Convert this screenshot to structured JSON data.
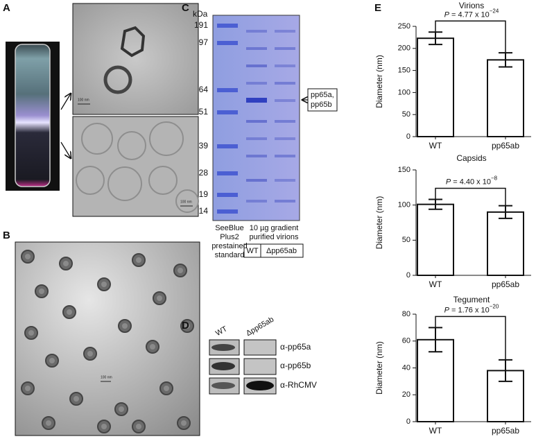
{
  "panels": {
    "A": {
      "label": "A",
      "scale_bar_top": "100 nm",
      "scale_bar_bottom": "100 nm"
    },
    "B": {
      "label": "B",
      "scale_bar": "100 nm"
    },
    "C": {
      "label": "C",
      "unit": "kDa",
      "markers": [
        191,
        97,
        64,
        51,
        39,
        28,
        19,
        14
      ],
      "arrow_label": [
        "pp65a,",
        "pp65b"
      ],
      "standard_label": [
        "SeeBlue",
        "Plus2",
        "prestained",
        "standard"
      ],
      "sample_label": [
        "10 µg gradient",
        "purified virions"
      ],
      "lanes": [
        "WT",
        "Δpp65ab"
      ]
    },
    "D": {
      "label": "D",
      "lanes": [
        "WT",
        "Δpp65ab"
      ],
      "antibodies": [
        "α-pp65a",
        "α-pp65b",
        "α-RhCMV"
      ]
    },
    "E": {
      "label": "E"
    }
  },
  "chart_data": [
    {
      "type": "bar",
      "title": "Virions",
      "y_label": "Diameter (nm)",
      "categories": [
        "WT",
        "pp65ab"
      ],
      "values": [
        223,
        174
      ],
      "errors": [
        14,
        16
      ],
      "color": "#ffffff",
      "ylim": [
        0,
        250
      ],
      "yticks": [
        0,
        50,
        100,
        150,
        200,
        250
      ],
      "annotation": {
        "label": "P",
        "text": "= 4.77 x 10",
        "exponent": "−24"
      }
    },
    {
      "type": "bar",
      "title": "Capsids",
      "y_label": "Diameter (nm)",
      "categories": [
        "WT",
        "pp65ab"
      ],
      "values": [
        101,
        90
      ],
      "errors": [
        7,
        9
      ],
      "color": "#ffffff",
      "ylim": [
        0,
        150
      ],
      "yticks": [
        0,
        50,
        100,
        150
      ],
      "annotation": {
        "label": "P",
        "text": "= 4.40 x 10",
        "exponent": "−8"
      }
    },
    {
      "type": "bar",
      "title": "Tegument",
      "y_label": "Diameter (nm)",
      "categories": [
        "WT",
        "pp65ab"
      ],
      "values": [
        61,
        38
      ],
      "errors": [
        9,
        8
      ],
      "color": "#ffffff",
      "ylim": [
        0,
        80
      ],
      "yticks": [
        0,
        20,
        40,
        60,
        80
      ],
      "annotation": {
        "label": "P",
        "text": "= 1.76 x 10",
        "exponent": "−20"
      }
    }
  ]
}
